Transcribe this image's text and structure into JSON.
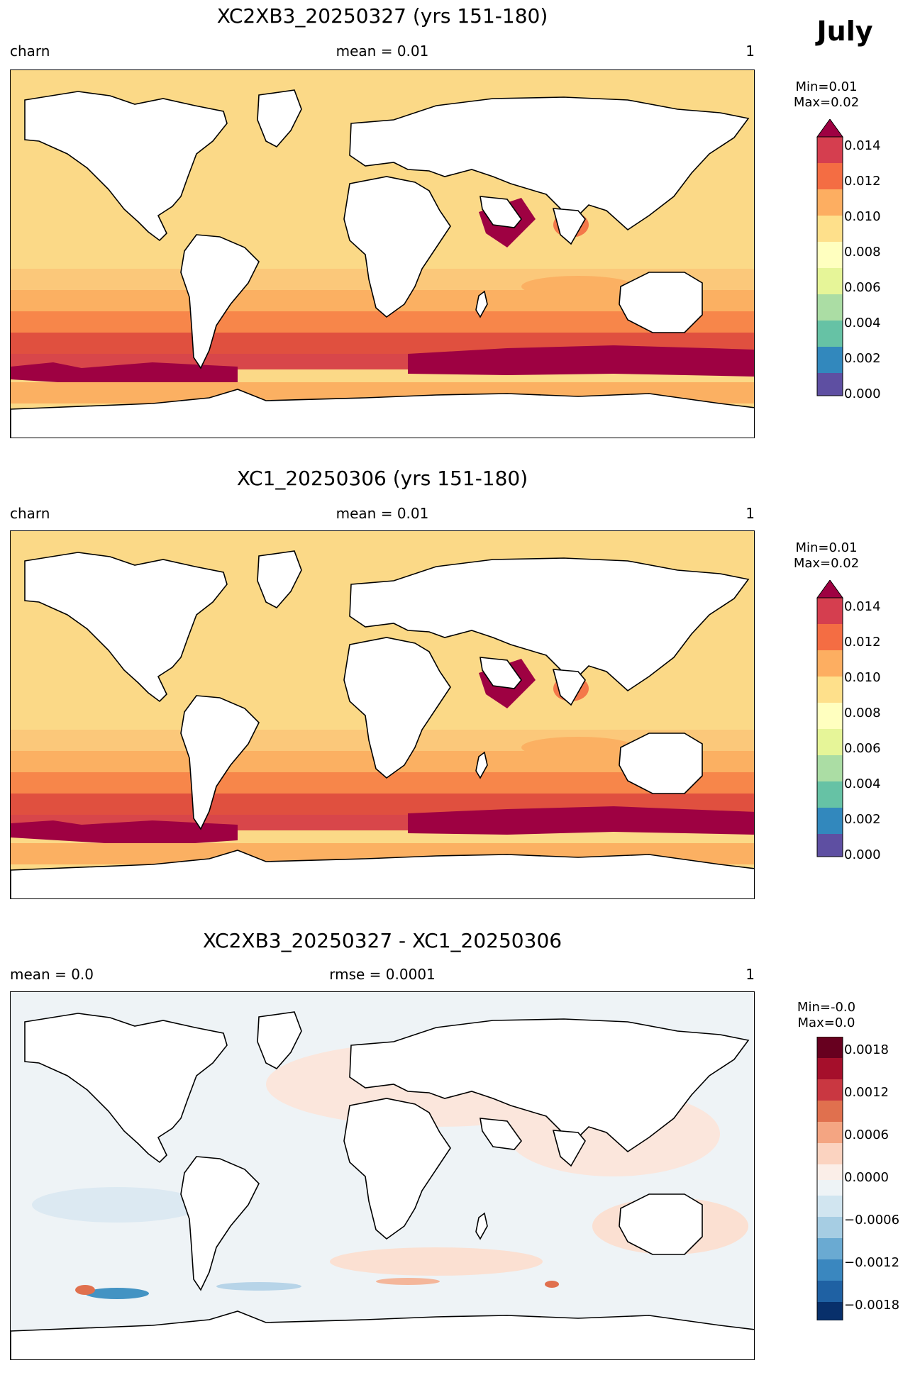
{
  "figure": {
    "month": "July"
  },
  "panels": [
    {
      "id": "p1",
      "title": "XC2XB3_20250327 (yrs 151-180)",
      "left_label": "charn",
      "center_label": "mean = 0.01",
      "right_label": "1",
      "min_label": "Min=0.01",
      "max_label": "Max=0.02",
      "colorbar_ticks": [
        "0.014",
        "0.012",
        "0.010",
        "0.008",
        "0.006",
        "0.004",
        "0.002",
        "0.000"
      ]
    },
    {
      "id": "p2",
      "title": "XC1_20250306 (yrs 151-180)",
      "left_label": "charn",
      "center_label": "mean = 0.01",
      "right_label": "1",
      "min_label": "Min=0.01",
      "max_label": "Max=0.02",
      "colorbar_ticks": [
        "0.014",
        "0.012",
        "0.010",
        "0.008",
        "0.006",
        "0.004",
        "0.002",
        "0.000"
      ]
    },
    {
      "id": "p3",
      "title": "XC2XB3_20250327 - XC1_20250306",
      "left_label": "mean = 0.0",
      "center_label": "rmse = 0.0001",
      "right_label": "1",
      "min_label": "Min=-0.0",
      "max_label": "Max=0.0",
      "colorbar_ticks": [
        "0.0018",
        "0.0012",
        "0.0006",
        "0.0000",
        "−0.0006",
        "−0.0012",
        "−0.0018"
      ]
    }
  ],
  "colors": {
    "seq_scale": [
      "#5e4fa2",
      "#3288bd",
      "#66c2a5",
      "#abdda4",
      "#e6f598",
      "#fee08b",
      "#fdae61",
      "#f46d43",
      "#d53e4f",
      "#9e0142"
    ],
    "div_scale": [
      "#08306b",
      "#2166ac",
      "#4393c3",
      "#92c5de",
      "#d1e5f0",
      "#f7f7f7",
      "#fddbc7",
      "#f4a582",
      "#d6604d",
      "#b2182b",
      "#67001f"
    ]
  }
}
